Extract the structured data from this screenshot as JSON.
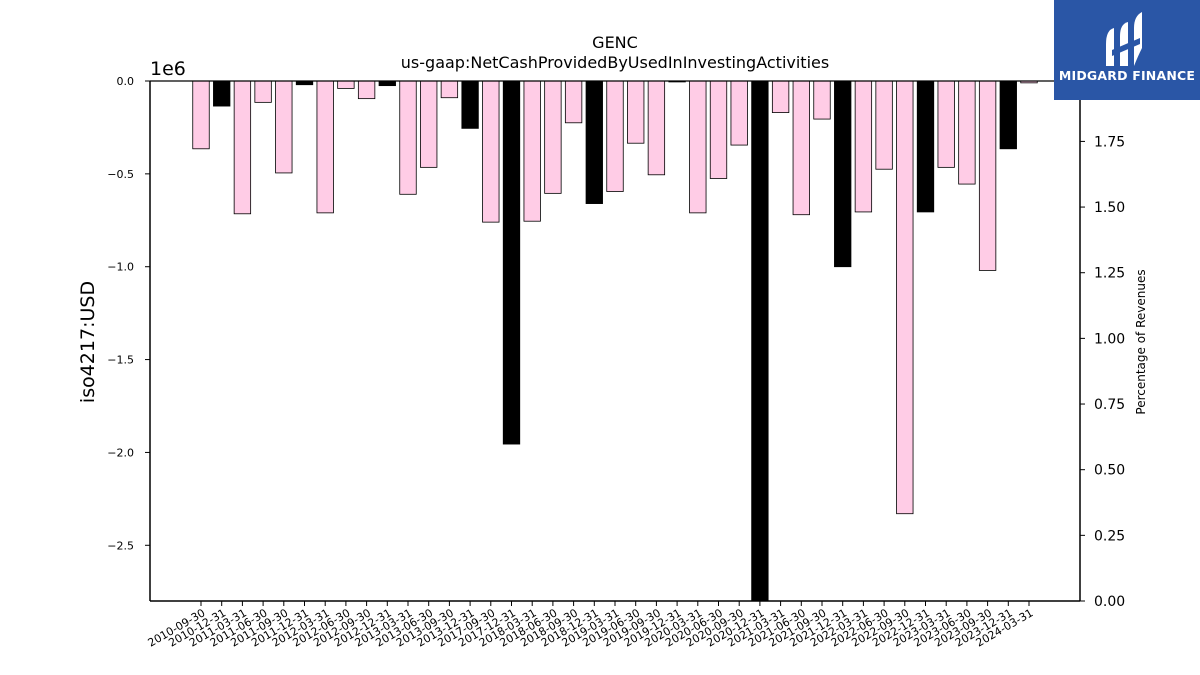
{
  "brand": {
    "name": "MIDGARD FINANCE",
    "bg_color": "#2a56a6"
  },
  "chart_data": {
    "type": "bar",
    "title": "GENC",
    "subtitle": "us-gaap:NetCashProvidedByUsedInInvestingActivities",
    "ylabel": "iso4217:USD",
    "y2label": "Percentage of Revenues",
    "yscale_label": "1e6",
    "ylim": [
      -2.8,
      0.0
    ],
    "y2lim": [
      0.0,
      1.98
    ],
    "yticks": [
      "0.0",
      "−0.5",
      "−1.0",
      "−1.5",
      "−2.0",
      "−2.5"
    ],
    "ytick_values": [
      0.0,
      -0.5,
      -1.0,
      -1.5,
      -2.0,
      -2.5
    ],
    "y2ticks": [
      "0.00",
      "0.25",
      "0.50",
      "0.75",
      "1.00",
      "1.25",
      "1.50",
      "1.75"
    ],
    "y2tick_values": [
      0.0,
      0.25,
      0.5,
      0.75,
      1.0,
      1.25,
      1.5,
      1.75
    ],
    "colors": {
      "annual": "#000000",
      "quarterly": "#ffcce6",
      "edge": "#000000"
    },
    "categories": [
      "2010-09-30",
      "2010-12-31",
      "2011-03-31",
      "2011-06-30",
      "2011-09-30",
      "2011-12-31",
      "2012-03-31",
      "2012-06-30",
      "2012-09-30",
      "2012-12-31",
      "2013-03-31",
      "2013-06-30",
      "2013-09-30",
      "2013-12-31",
      "2017-09-30",
      "2017-12-31",
      "2018-03-31",
      "2018-06-30",
      "2018-09-30",
      "2018-12-31",
      "2019-03-31",
      "2019-06-30",
      "2019-09-30",
      "2019-12-31",
      "2020-03-31",
      "2020-06-30",
      "2020-09-30",
      "2020-12-31",
      "2021-03-31",
      "2021-06-30",
      "2021-09-30",
      "2021-12-31",
      "2022-03-31",
      "2022-06-30",
      "2022-09-30",
      "2022-12-31",
      "2023-03-31",
      "2023-06-30",
      "2023-09-30",
      "2023-12-31",
      "2024-03-31"
    ],
    "series": [
      {
        "values": [
          -0.365,
          -0.135,
          -0.715,
          -0.115,
          -0.495,
          -0.02,
          -0.71,
          -0.04,
          -0.095,
          -0.025,
          -0.61,
          -0.465,
          -0.09,
          -0.255,
          -0.76,
          -1.955,
          -0.755,
          -0.605,
          -0.225,
          -0.66,
          -0.595,
          -0.335,
          -0.505,
          -0.005,
          -0.71,
          -0.525,
          -0.345,
          -2.8,
          -0.17,
          -0.72,
          -0.205,
          -1.0,
          -0.705,
          -0.475,
          -2.33,
          -0.705,
          -0.465,
          -0.555,
          -1.02,
          -0.365,
          -0.01
        ],
        "kinds": [
          "q",
          "a",
          "q",
          "q",
          "q",
          "a",
          "q",
          "q",
          "q",
          "a",
          "q",
          "q",
          "q",
          "a",
          "q",
          "a",
          "q",
          "q",
          "q",
          "a",
          "q",
          "q",
          "q",
          "a",
          "q",
          "q",
          "q",
          "a",
          "q",
          "q",
          "q",
          "a",
          "q",
          "q",
          "q",
          "a",
          "q",
          "q",
          "q",
          "a",
          "q"
        ]
      }
    ]
  }
}
